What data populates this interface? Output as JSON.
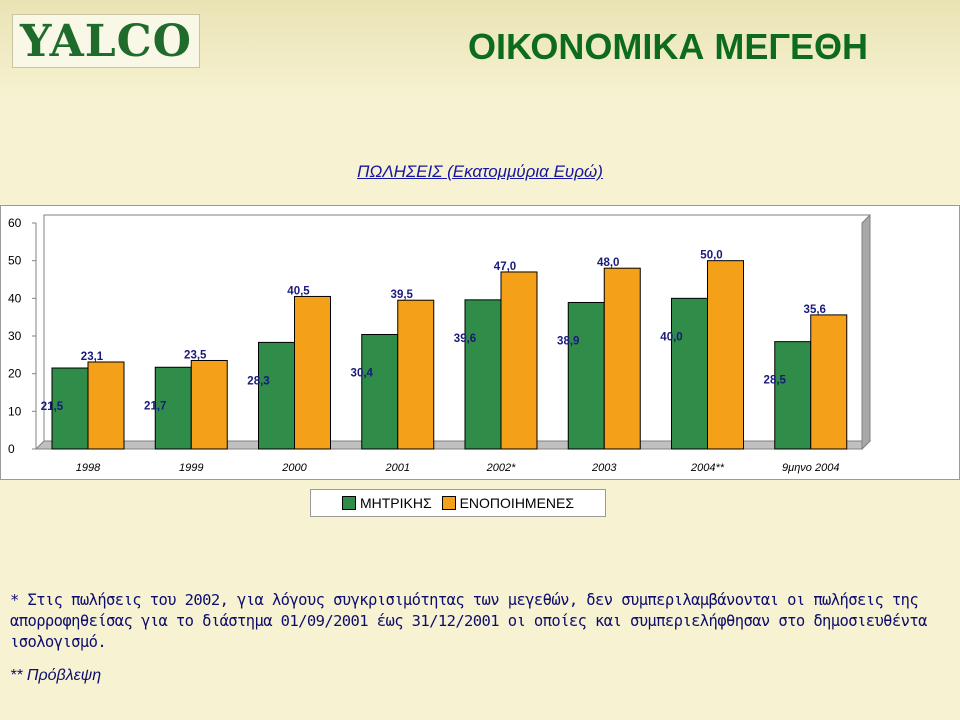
{
  "brand": {
    "logo_text": "YALCO"
  },
  "header": {
    "title": "ΟΙΚΟΝΟΜΙΚΑ ΜΕΓΕΘΗ"
  },
  "colors": {
    "series_1": "#2f8c49",
    "series_2": "#f5a019",
    "title": "#0d6b1e",
    "subtitle": "#1515a0",
    "text": "#0d0d6e"
  },
  "chart_data": {
    "type": "bar",
    "title": "ΠΩΛΗΣΕΙΣ (Εκατομμύρια Ευρώ)",
    "categories": [
      "1998",
      "1999",
      "2000",
      "2001",
      "2002*",
      "2003",
      "2004**",
      "9μηνο 2004"
    ],
    "series": [
      {
        "name": "ΜΗΤΡΙΚΗΣ",
        "values": [
          21.5,
          21.7,
          28.3,
          30.4,
          39.6,
          38.9,
          40.0,
          28.5
        ],
        "labels": [
          "21,5",
          "21,7",
          "28,3",
          "30,4",
          "39,6",
          "38,9",
          "40,0",
          "28,5"
        ]
      },
      {
        "name": "ΕΝΟΠΟΙΗΜΕΝΕΣ",
        "values": [
          23.1,
          23.5,
          40.5,
          39.5,
          47.0,
          48.0,
          50.0,
          35.6
        ],
        "labels": [
          "23,1",
          "23,5",
          "40,5",
          "39,5",
          "47,0",
          "48,0",
          "50,0",
          "35,6"
        ]
      }
    ],
    "ylim": [
      0,
      60
    ],
    "yticks": [
      "0",
      "10",
      "20",
      "30",
      "40",
      "50",
      "60"
    ],
    "legend_position": "bottom",
    "grid": false
  },
  "footnotes": {
    "note_1": "*   Στις πωλήσεις του 2002, για λόγους συγκρισιμότητας των μεγεθών, δεν συμπεριλαμβάνονται οι πωλήσεις της απορροφηθείσας για το διάστημα 01/09/2001 έως 31/12/2001 οι οποίες και συμπεριελήφθησαν στο δημοσιευθέντα ισολογισμό.",
    "note_2": "** Πρόβλεψη"
  }
}
